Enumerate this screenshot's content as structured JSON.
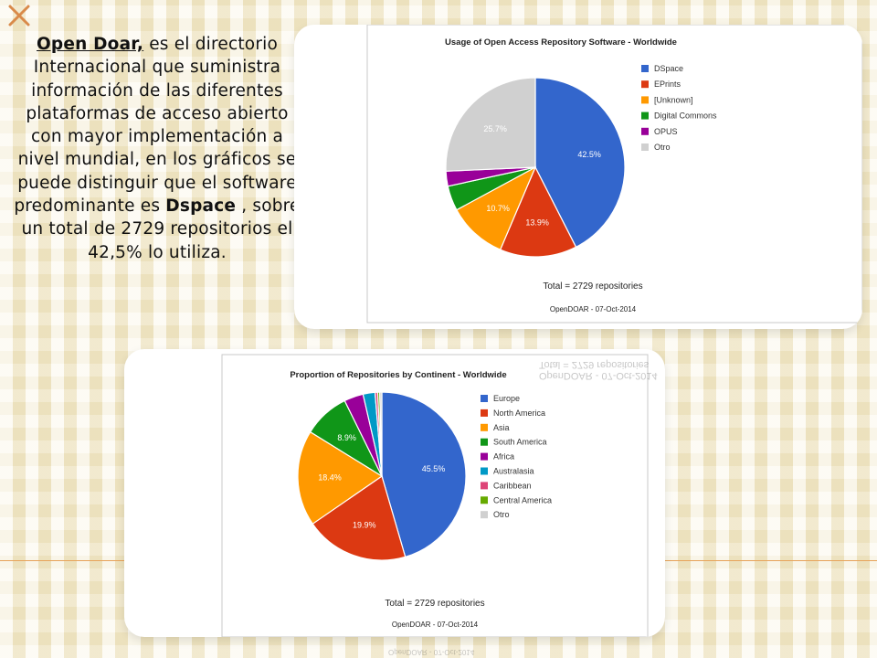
{
  "intro": {
    "lead": "Open Doar,",
    "part1": " es el directorio Internacional que suministra información de las diferentes plataformas de acceso abierto  con mayor implementación a nivel mundial,  en los gráficos se puede distinguir que el software predominante es ",
    "highlight": "Dspace",
    "part2": " , sobre un total de 2729 repositorios el 42,5% lo utiliza."
  },
  "chart_data": [
    {
      "type": "pie",
      "title": "Usage of Open Access Repository Software - Worldwide",
      "categories": [
        "DSpace",
        "EPrints",
        "[Unknown]",
        "Digital Commons",
        "OPUS",
        "Otro"
      ],
      "values": [
        42.5,
        13.9,
        10.7,
        4.5,
        2.7,
        25.7
      ],
      "data_labels": [
        "42.5%",
        "13.9%",
        "10.7%",
        "",
        "",
        "25.7%"
      ],
      "colors": [
        "#3366cc",
        "#dc3912",
        "#ff9900",
        "#109618",
        "#990099",
        "#d0d0d0"
      ],
      "legend": "right",
      "total_label": "Total = 2729 repositories",
      "source_label": "OpenDOAR - 07-Oct-2014"
    },
    {
      "type": "pie",
      "title": "Proportion of Repositories by Continent - Worldwide",
      "categories": [
        "Europe",
        "North America",
        "Asia",
        "South America",
        "Africa",
        "Australasia",
        "Caribbean",
        "Central America",
        "Otro"
      ],
      "values": [
        45.5,
        19.9,
        18.4,
        8.9,
        3.7,
        2.3,
        0.5,
        0.4,
        0.4
      ],
      "data_labels": [
        "45.5%",
        "19.9%",
        "18.4%",
        "8.9%",
        "",
        "",
        "",
        "",
        ""
      ],
      "colors": [
        "#3366cc",
        "#dc3912",
        "#ff9900",
        "#109618",
        "#990099",
        "#0099c6",
        "#dd4477",
        "#66aa00",
        "#d0d0d0"
      ],
      "legend": "right",
      "total_label": "Total = 2729 repositories",
      "source_label": "OpenDOAR - 07-Oct-2014"
    }
  ]
}
